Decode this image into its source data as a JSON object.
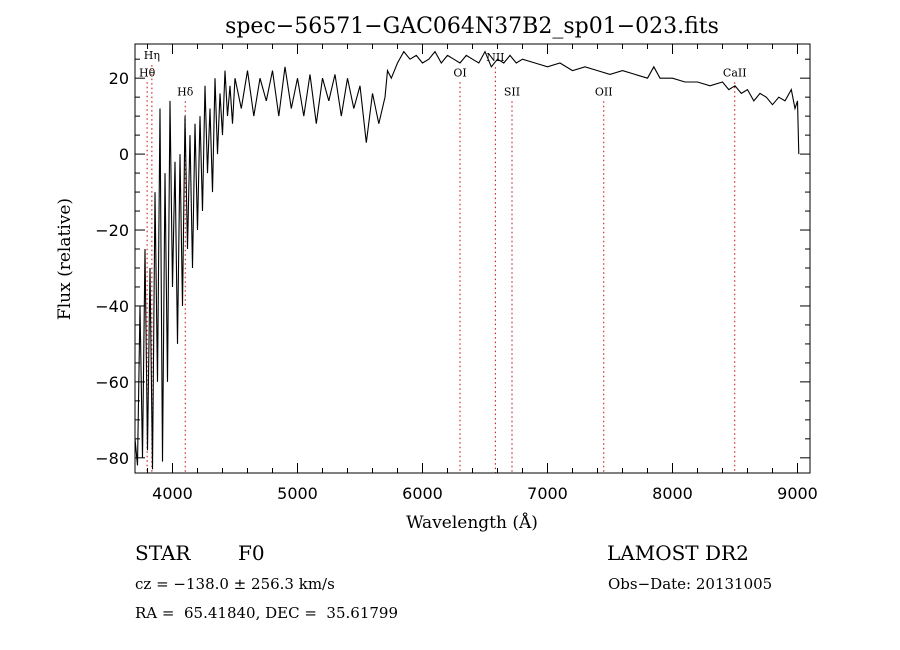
{
  "chart_data": {
    "type": "line",
    "title": "spec−56571−GAC064N37B2_sp01−023.fits",
    "xlabel": "Wavelength (Å)",
    "ylabel": "Flux (relative)",
    "xlim": [
      3700,
      9100
    ],
    "ylim": [
      -84,
      29
    ],
    "xticks": [
      4000,
      5000,
      6000,
      7000,
      8000,
      9000
    ],
    "xtick_labels": [
      "4000",
      "5000",
      "6000",
      "7000",
      "8000",
      "9000"
    ],
    "yticks": [
      -80,
      -60,
      -40,
      -20,
      0,
      20
    ],
    "ytick_labels": [
      "−80",
      "−60",
      "−40",
      "−20",
      "0",
      "20"
    ],
    "grid": false,
    "legend": "none",
    "line_color": "#000000",
    "marker_color": "#cc0000",
    "spectrum": {
      "x": [
        3700,
        3720,
        3740,
        3760,
        3780,
        3800,
        3820,
        3840,
        3860,
        3880,
        3900,
        3920,
        3940,
        3960,
        3980,
        4000,
        4020,
        4040,
        4060,
        4080,
        4100,
        4120,
        4140,
        4160,
        4180,
        4200,
        4220,
        4240,
        4260,
        4280,
        4300,
        4320,
        4340,
        4360,
        4380,
        4400,
        4420,
        4440,
        4460,
        4480,
        4500,
        4550,
        4600,
        4650,
        4700,
        4750,
        4800,
        4850,
        4900,
        4950,
        5000,
        5050,
        5100,
        5150,
        5200,
        5250,
        5300,
        5350,
        5400,
        5450,
        5500,
        5550,
        5600,
        5650,
        5700,
        5720,
        5750,
        5800,
        5850,
        5900,
        5950,
        6000,
        6050,
        6100,
        6150,
        6200,
        6250,
        6300,
        6350,
        6400,
        6450,
        6500,
        6550,
        6600,
        6650,
        6700,
        6750,
        6800,
        6900,
        7000,
        7100,
        7200,
        7300,
        7400,
        7500,
        7600,
        7700,
        7800,
        7850,
        7900,
        8000,
        8100,
        8200,
        8300,
        8400,
        8450,
        8500,
        8550,
        8600,
        8650,
        8700,
        8750,
        8800,
        8850,
        8900,
        8950,
        8980,
        9000,
        9010
      ],
      "y": [
        -75,
        -82,
        -40,
        -80,
        -25,
        -78,
        -30,
        -83,
        -10,
        -60,
        12,
        -81,
        -5,
        -60,
        14,
        -35,
        -2,
        -50,
        0,
        -40,
        10,
        -25,
        5,
        -30,
        8,
        -20,
        10,
        -15,
        18,
        -5,
        12,
        -10,
        20,
        0,
        16,
        5,
        22,
        10,
        18,
        8,
        20,
        12,
        22,
        10,
        20,
        14,
        22,
        10,
        23,
        12,
        20,
        10,
        21,
        8,
        20,
        14,
        21,
        10,
        20,
        12,
        18,
        3,
        16,
        8,
        15,
        22,
        20,
        24,
        27,
        25,
        26,
        24,
        25,
        27,
        24,
        26,
        25,
        24,
        26,
        25,
        24,
        27,
        23,
        25,
        24,
        26,
        24,
        25,
        24,
        23,
        24,
        22,
        23,
        22,
        21,
        22,
        21,
        20,
        23,
        20,
        20,
        19,
        19,
        18,
        19,
        17,
        18,
        16,
        17,
        14,
        16,
        15,
        13,
        15,
        14,
        17,
        12,
        14,
        0
      ]
    },
    "line_markers": [
      {
        "label": "Hη",
        "x": 3835,
        "label_y": 25
      },
      {
        "label": "Hθ",
        "x": 3797,
        "label_y": 20.5
      },
      {
        "label": "Hδ",
        "x": 4102,
        "label_y": 15.5
      },
      {
        "label": "OI",
        "x": 6300,
        "label_y": 20.5
      },
      {
        "label": "NII",
        "x": 6583,
        "label_y": 24.5
      },
      {
        "label": "SII",
        "x": 6716,
        "label_y": 15.5
      },
      {
        "label": "OII",
        "x": 7450,
        "label_y": 15.5
      },
      {
        "label": "CaII",
        "x": 8498,
        "label_y": 20.5
      }
    ]
  },
  "info": {
    "object_class": "STAR",
    "subclass": "F0",
    "survey": "LAMOST DR2",
    "redshift_text": "cz = −138.0 ± 256.3 km/s",
    "obs_date": "Obs−Date: 20131005",
    "coords_text": "RA =  65.41840, DEC =  35.61799"
  }
}
